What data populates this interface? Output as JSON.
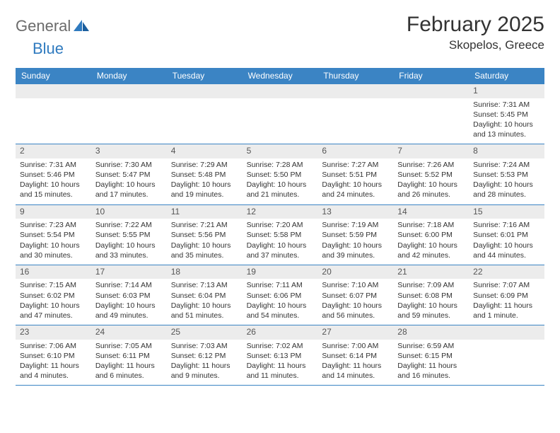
{
  "logo": {
    "word1": "General",
    "word2": "Blue"
  },
  "title": "February 2025",
  "location": "Skopelos, Greece",
  "colors": {
    "header_bar": "#3b84c4",
    "week_border": "#3b84c4",
    "daynum_bg": "#ececec",
    "logo_gray": "#6b6b6b",
    "logo_blue": "#2f7abf",
    "text": "#333333"
  },
  "day_headers": [
    "Sunday",
    "Monday",
    "Tuesday",
    "Wednesday",
    "Thursday",
    "Friday",
    "Saturday"
  ],
  "weeks": [
    [
      {
        "n": "",
        "sr": "",
        "ss": "",
        "dl": ""
      },
      {
        "n": "",
        "sr": "",
        "ss": "",
        "dl": ""
      },
      {
        "n": "",
        "sr": "",
        "ss": "",
        "dl": ""
      },
      {
        "n": "",
        "sr": "",
        "ss": "",
        "dl": ""
      },
      {
        "n": "",
        "sr": "",
        "ss": "",
        "dl": ""
      },
      {
        "n": "",
        "sr": "",
        "ss": "",
        "dl": ""
      },
      {
        "n": "1",
        "sr": "Sunrise: 7:31 AM",
        "ss": "Sunset: 5:45 PM",
        "dl": "Daylight: 10 hours and 13 minutes."
      }
    ],
    [
      {
        "n": "2",
        "sr": "Sunrise: 7:31 AM",
        "ss": "Sunset: 5:46 PM",
        "dl": "Daylight: 10 hours and 15 minutes."
      },
      {
        "n": "3",
        "sr": "Sunrise: 7:30 AM",
        "ss": "Sunset: 5:47 PM",
        "dl": "Daylight: 10 hours and 17 minutes."
      },
      {
        "n": "4",
        "sr": "Sunrise: 7:29 AM",
        "ss": "Sunset: 5:48 PM",
        "dl": "Daylight: 10 hours and 19 minutes."
      },
      {
        "n": "5",
        "sr": "Sunrise: 7:28 AM",
        "ss": "Sunset: 5:50 PM",
        "dl": "Daylight: 10 hours and 21 minutes."
      },
      {
        "n": "6",
        "sr": "Sunrise: 7:27 AM",
        "ss": "Sunset: 5:51 PM",
        "dl": "Daylight: 10 hours and 24 minutes."
      },
      {
        "n": "7",
        "sr": "Sunrise: 7:26 AM",
        "ss": "Sunset: 5:52 PM",
        "dl": "Daylight: 10 hours and 26 minutes."
      },
      {
        "n": "8",
        "sr": "Sunrise: 7:24 AM",
        "ss": "Sunset: 5:53 PM",
        "dl": "Daylight: 10 hours and 28 minutes."
      }
    ],
    [
      {
        "n": "9",
        "sr": "Sunrise: 7:23 AM",
        "ss": "Sunset: 5:54 PM",
        "dl": "Daylight: 10 hours and 30 minutes."
      },
      {
        "n": "10",
        "sr": "Sunrise: 7:22 AM",
        "ss": "Sunset: 5:55 PM",
        "dl": "Daylight: 10 hours and 33 minutes."
      },
      {
        "n": "11",
        "sr": "Sunrise: 7:21 AM",
        "ss": "Sunset: 5:56 PM",
        "dl": "Daylight: 10 hours and 35 minutes."
      },
      {
        "n": "12",
        "sr": "Sunrise: 7:20 AM",
        "ss": "Sunset: 5:58 PM",
        "dl": "Daylight: 10 hours and 37 minutes."
      },
      {
        "n": "13",
        "sr": "Sunrise: 7:19 AM",
        "ss": "Sunset: 5:59 PM",
        "dl": "Daylight: 10 hours and 39 minutes."
      },
      {
        "n": "14",
        "sr": "Sunrise: 7:18 AM",
        "ss": "Sunset: 6:00 PM",
        "dl": "Daylight: 10 hours and 42 minutes."
      },
      {
        "n": "15",
        "sr": "Sunrise: 7:16 AM",
        "ss": "Sunset: 6:01 PM",
        "dl": "Daylight: 10 hours and 44 minutes."
      }
    ],
    [
      {
        "n": "16",
        "sr": "Sunrise: 7:15 AM",
        "ss": "Sunset: 6:02 PM",
        "dl": "Daylight: 10 hours and 47 minutes."
      },
      {
        "n": "17",
        "sr": "Sunrise: 7:14 AM",
        "ss": "Sunset: 6:03 PM",
        "dl": "Daylight: 10 hours and 49 minutes."
      },
      {
        "n": "18",
        "sr": "Sunrise: 7:13 AM",
        "ss": "Sunset: 6:04 PM",
        "dl": "Daylight: 10 hours and 51 minutes."
      },
      {
        "n": "19",
        "sr": "Sunrise: 7:11 AM",
        "ss": "Sunset: 6:06 PM",
        "dl": "Daylight: 10 hours and 54 minutes."
      },
      {
        "n": "20",
        "sr": "Sunrise: 7:10 AM",
        "ss": "Sunset: 6:07 PM",
        "dl": "Daylight: 10 hours and 56 minutes."
      },
      {
        "n": "21",
        "sr": "Sunrise: 7:09 AM",
        "ss": "Sunset: 6:08 PM",
        "dl": "Daylight: 10 hours and 59 minutes."
      },
      {
        "n": "22",
        "sr": "Sunrise: 7:07 AM",
        "ss": "Sunset: 6:09 PM",
        "dl": "Daylight: 11 hours and 1 minute."
      }
    ],
    [
      {
        "n": "23",
        "sr": "Sunrise: 7:06 AM",
        "ss": "Sunset: 6:10 PM",
        "dl": "Daylight: 11 hours and 4 minutes."
      },
      {
        "n": "24",
        "sr": "Sunrise: 7:05 AM",
        "ss": "Sunset: 6:11 PM",
        "dl": "Daylight: 11 hours and 6 minutes."
      },
      {
        "n": "25",
        "sr": "Sunrise: 7:03 AM",
        "ss": "Sunset: 6:12 PM",
        "dl": "Daylight: 11 hours and 9 minutes."
      },
      {
        "n": "26",
        "sr": "Sunrise: 7:02 AM",
        "ss": "Sunset: 6:13 PM",
        "dl": "Daylight: 11 hours and 11 minutes."
      },
      {
        "n": "27",
        "sr": "Sunrise: 7:00 AM",
        "ss": "Sunset: 6:14 PM",
        "dl": "Daylight: 11 hours and 14 minutes."
      },
      {
        "n": "28",
        "sr": "Sunrise: 6:59 AM",
        "ss": "Sunset: 6:15 PM",
        "dl": "Daylight: 11 hours and 16 minutes."
      },
      {
        "n": "",
        "sr": "",
        "ss": "",
        "dl": ""
      }
    ]
  ]
}
